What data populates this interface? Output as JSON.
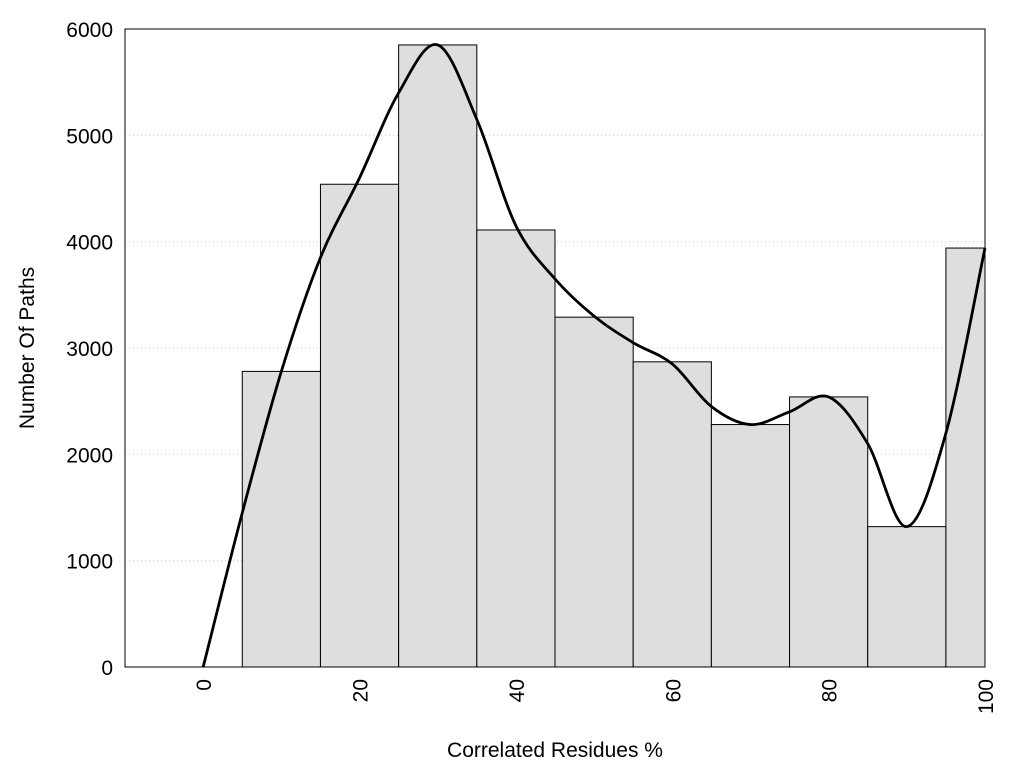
{
  "chart_data": {
    "type": "bar",
    "title": "",
    "xlabel": "Correlated Residues %",
    "ylabel": "Number Of Paths",
    "xlim": [
      -10,
      100
    ],
    "ylim": [
      0,
      6000
    ],
    "x_ticks": [
      "0",
      "20",
      "40",
      "60",
      "80",
      "100"
    ],
    "y_ticks": [
      "0",
      "1000",
      "2000",
      "3000",
      "4000",
      "5000",
      "6000"
    ],
    "grid": "horizontal dotted",
    "legend": "none",
    "bar_width": 10,
    "bars": [
      {
        "x": 10,
        "value": 2780
      },
      {
        "x": 20,
        "value": 4540
      },
      {
        "x": 30,
        "value": 5850
      },
      {
        "x": 40,
        "value": 4110
      },
      {
        "x": 50,
        "value": 3290
      },
      {
        "x": 60,
        "value": 2870
      },
      {
        "x": 70,
        "value": 2280
      },
      {
        "x": 80,
        "value": 2540
      },
      {
        "x": 90,
        "value": 1320
      },
      {
        "x": 100,
        "value": 3940
      }
    ],
    "curve": {
      "x": [
        0,
        5,
        10,
        15,
        20,
        25,
        30,
        35,
        40,
        45,
        50,
        55,
        60,
        65,
        70,
        75,
        80,
        85,
        90,
        95,
        100
      ],
      "y": [
        0,
        1450,
        2780,
        3850,
        4600,
        5400,
        5850,
        5150,
        4150,
        3650,
        3300,
        3050,
        2850,
        2450,
        2280,
        2400,
        2540,
        2100,
        1320,
        2200,
        3940
      ]
    },
    "colors": {
      "bar_fill": "#dedede",
      "bar_stroke": "#000000",
      "curve": "#000000",
      "grid": "#c8c8c8"
    }
  }
}
